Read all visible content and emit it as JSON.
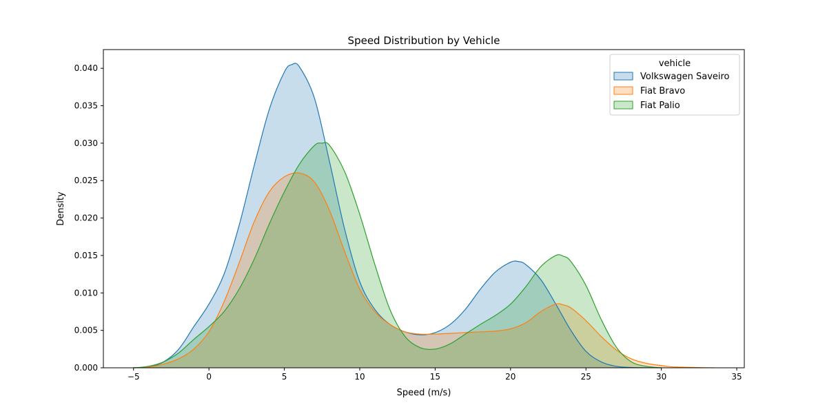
{
  "chart_data": {
    "type": "area",
    "title": "Speed Distribution by Vehicle",
    "xlabel": "Speed (m/s)",
    "ylabel": "Density",
    "xlim": [
      -7,
      35.5
    ],
    "ylim": [
      0,
      0.0425
    ],
    "x_ticks": [
      -5,
      0,
      5,
      10,
      15,
      20,
      25,
      30,
      35
    ],
    "y_ticks": [
      0,
      0.005,
      0.01,
      0.015,
      0.02,
      0.025,
      0.03,
      0.035,
      0.04
    ],
    "y_tick_labels": [
      "0.000",
      "0.005",
      "0.010",
      "0.015",
      "0.020",
      "0.025",
      "0.030",
      "0.035",
      "0.040"
    ],
    "grid": false,
    "legend": {
      "title": "vehicle",
      "placement": "top-right"
    },
    "series": [
      {
        "name": "Volkswagen Saveiro",
        "color": "#1f77b4",
        "points": [
          [
            -5,
            0
          ],
          [
            -4,
            0.0001
          ],
          [
            -3,
            0.0008
          ],
          [
            -2,
            0.0025
          ],
          [
            -1,
            0.0055
          ],
          [
            0,
            0.0085
          ],
          [
            1,
            0.0125
          ],
          [
            2,
            0.019
          ],
          [
            3,
            0.027
          ],
          [
            4,
            0.0345
          ],
          [
            5,
            0.0395
          ],
          [
            5.5,
            0.0405
          ],
          [
            6,
            0.0402
          ],
          [
            7,
            0.036
          ],
          [
            8,
            0.0275
          ],
          [
            9,
            0.0185
          ],
          [
            10,
            0.0115
          ],
          [
            11,
            0.0078
          ],
          [
            12,
            0.0058
          ],
          [
            13,
            0.0048
          ],
          [
            14,
            0.0044
          ],
          [
            15,
            0.0047
          ],
          [
            16,
            0.0058
          ],
          [
            17,
            0.0078
          ],
          [
            18,
            0.0105
          ],
          [
            19,
            0.0128
          ],
          [
            20,
            0.0141
          ],
          [
            20.5,
            0.0142
          ],
          [
            21,
            0.0138
          ],
          [
            22,
            0.0118
          ],
          [
            23,
            0.0085
          ],
          [
            24,
            0.005
          ],
          [
            25,
            0.0022
          ],
          [
            26,
            0.0008
          ],
          [
            27,
            0.0002
          ],
          [
            28,
            5e-05
          ],
          [
            30,
            0
          ]
        ]
      },
      {
        "name": "Fiat Bravo",
        "color": "#ff7f0e",
        "points": [
          [
            -5,
            0
          ],
          [
            -4,
            0.0001
          ],
          [
            -3,
            0.0005
          ],
          [
            -2,
            0.0012
          ],
          [
            -1,
            0.0025
          ],
          [
            0,
            0.0048
          ],
          [
            1,
            0.0088
          ],
          [
            2,
            0.014
          ],
          [
            3,
            0.0195
          ],
          [
            4,
            0.0235
          ],
          [
            5,
            0.0255
          ],
          [
            6,
            0.026
          ],
          [
            7,
            0.0248
          ],
          [
            8,
            0.021
          ],
          [
            9,
            0.0155
          ],
          [
            10,
            0.0105
          ],
          [
            11,
            0.0075
          ],
          [
            12,
            0.0058
          ],
          [
            13,
            0.0048
          ],
          [
            14,
            0.0045
          ],
          [
            15,
            0.0045
          ],
          [
            16,
            0.0046
          ],
          [
            17,
            0.0047
          ],
          [
            18,
            0.0048
          ],
          [
            19,
            0.0049
          ],
          [
            20,
            0.0052
          ],
          [
            21,
            0.006
          ],
          [
            22,
            0.0075
          ],
          [
            23,
            0.0085
          ],
          [
            23.5,
            0.0084
          ],
          [
            24,
            0.008
          ],
          [
            25,
            0.0063
          ],
          [
            26,
            0.0042
          ],
          [
            27,
            0.0024
          ],
          [
            28,
            0.0012
          ],
          [
            29,
            0.0006
          ],
          [
            30,
            0.0003
          ],
          [
            31,
            0.0001
          ],
          [
            33.5,
            0
          ]
        ]
      },
      {
        "name": "Fiat Palio",
        "color": "#2ca02c",
        "points": [
          [
            -5,
            0
          ],
          [
            -4,
            0.0002
          ],
          [
            -3,
            0.0008
          ],
          [
            -2,
            0.002
          ],
          [
            -1,
            0.0038
          ],
          [
            0,
            0.0055
          ],
          [
            1,
            0.0075
          ],
          [
            2,
            0.0105
          ],
          [
            3,
            0.0145
          ],
          [
            4,
            0.0192
          ],
          [
            5,
            0.0235
          ],
          [
            6,
            0.0272
          ],
          [
            7,
            0.0297
          ],
          [
            7.5,
            0.03
          ],
          [
            8,
            0.0297
          ],
          [
            9,
            0.0262
          ],
          [
            10,
            0.0205
          ],
          [
            11,
            0.0138
          ],
          [
            12,
            0.0078
          ],
          [
            13,
            0.0042
          ],
          [
            14,
            0.0027
          ],
          [
            15,
            0.0025
          ],
          [
            16,
            0.0032
          ],
          [
            17,
            0.0045
          ],
          [
            18,
            0.0058
          ],
          [
            19,
            0.007
          ],
          [
            20,
            0.0085
          ],
          [
            21,
            0.0108
          ],
          [
            22,
            0.0135
          ],
          [
            23,
            0.015
          ],
          [
            23.5,
            0.0149
          ],
          [
            24,
            0.0142
          ],
          [
            25,
            0.011
          ],
          [
            26,
            0.0065
          ],
          [
            27,
            0.0028
          ],
          [
            28,
            0.0008
          ],
          [
            29,
            0.0002
          ],
          [
            30,
            0
          ]
        ]
      }
    ]
  }
}
